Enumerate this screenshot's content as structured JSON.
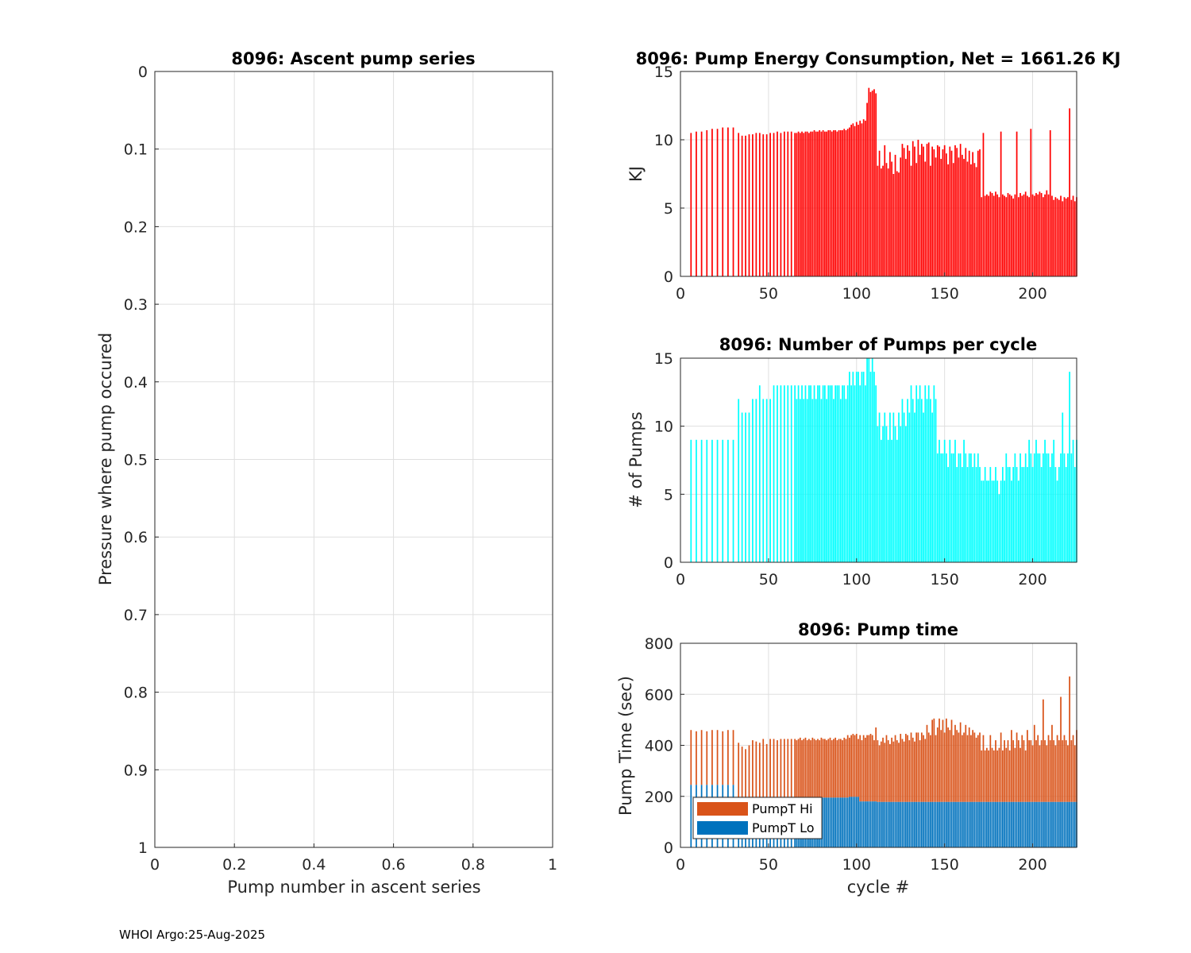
{
  "footer": "WHOI Argo:25-Aug-2025",
  "colors": {
    "energy": "#ff0000",
    "pumps": "#00ffff",
    "hi": "#d95319",
    "lo": "#0072bd",
    "grid": "#dfdfdf",
    "axis": "#262626"
  },
  "chart_data": [
    {
      "id": "ascent",
      "type": "scatter",
      "title": "8096: Ascent pump series",
      "xlabel": "Pump number in ascent series",
      "ylabel": "Pressure where pump occured",
      "xlim": [
        0,
        1
      ],
      "ylim": [
        0,
        1
      ],
      "yreverse": true,
      "xticks": [
        "0",
        "0.2",
        "0.4",
        "0.6",
        "0.8",
        "1"
      ],
      "yticks": [
        "0",
        "0.1",
        "0.2",
        "0.3",
        "0.4",
        "0.5",
        "0.6",
        "0.7",
        "0.8",
        "0.9",
        "1"
      ],
      "grid": true,
      "points": []
    },
    {
      "id": "energy",
      "type": "bar",
      "title": "8096: Pump Energy Consumption,  Net = 1661.26 KJ",
      "xlabel": "",
      "ylabel": "KJ",
      "xlim": [
        0,
        225
      ],
      "ylim": [
        0,
        15
      ],
      "xticks": [
        "0",
        "50",
        "100",
        "150",
        "200"
      ],
      "yticks": [
        "0",
        "5",
        "10",
        "15"
      ],
      "grid": true,
      "segments": [
        {
          "from": 6,
          "to": 30,
          "step": 3,
          "values": [
            10.5,
            10.6,
            10.6,
            10.7,
            10.8,
            10.8,
            10.9,
            10.9,
            10.9
          ]
        },
        {
          "from": 33,
          "to": 64,
          "step": 2,
          "values": [
            10.5,
            10.3,
            10.3,
            10.4,
            10.4,
            10.5,
            10.5,
            10.4,
            10.4,
            10.5,
            10.5,
            10.6,
            10.5,
            10.6,
            10.6,
            10.6
          ]
        },
        {
          "from": 65,
          "to": 95,
          "step": 1,
          "values": [
            10.5,
            10.5,
            10.6,
            10.5,
            10.6,
            10.5,
            10.6,
            10.6,
            10.5,
            10.6,
            10.6,
            10.7,
            10.6,
            10.6,
            10.7,
            10.6,
            10.7,
            10.6,
            10.6,
            10.7,
            10.7,
            10.6,
            10.7,
            10.7,
            10.6,
            10.7,
            10.7,
            10.7,
            10.8,
            10.7,
            10.8
          ]
        },
        {
          "from": 96,
          "to": 111,
          "step": 1,
          "values": [
            10.9,
            11.1,
            11.2,
            11.0,
            11.3,
            11.1,
            11.4,
            11.2,
            11.5,
            11.4,
            12.7,
            13.8,
            13.5,
            13.6,
            13.7,
            13.4
          ]
        },
        {
          "from": 112,
          "to": 170,
          "step": 1,
          "values": [
            8.1,
            9.2,
            7.9,
            8.1,
            9.6,
            8.3,
            7.9,
            9.1,
            8.4,
            7.5,
            8.9,
            7.7,
            7.6,
            8.7,
            9.7,
            9.4,
            8.6,
            9.6,
            9.2,
            8.1,
            9.9,
            9.5,
            8.3,
            10.0,
            8.9,
            9.7,
            9.5,
            8.4,
            9.7,
            9.8,
            8.1,
            9.5,
            9.3,
            8.7,
            9.6,
            9.5,
            8.6,
            9.3,
            9.6,
            9.0,
            8.2,
            9.5,
            9.2,
            8.3,
            9.6,
            9.4,
            8.7,
            9.7,
            8.9,
            8.6,
            9.4,
            8.4,
            9.2,
            8.2,
            9.1,
            8.3,
            8.0,
            9.2,
            9.3
          ]
        },
        {
          "from": 171,
          "to": 225,
          "step": 1,
          "values": [
            5.8,
            10.5,
            5.9,
            6.0,
            5.9,
            6.2,
            6.1,
            5.9,
            6.2,
            6.0,
            5.8,
            10.6,
            6.0,
            5.9,
            5.8,
            6.1,
            6.0,
            5.9,
            5.7,
            6.0,
            10.6,
            5.8,
            6.1,
            5.9,
            6.0,
            6.2,
            5.9,
            5.8,
            10.8,
            6.0,
            5.9,
            6.1,
            6.0,
            6.2,
            6.1,
            5.8,
            6.0,
            6.3,
            6.0,
            10.7,
            5.9,
            5.6,
            5.8,
            5.7,
            5.6,
            5.9,
            5.5,
            5.8,
            5.7,
            5.8,
            12.3,
            5.6,
            5.9,
            5.5,
            5.8
          ]
        }
      ]
    },
    {
      "id": "pumps",
      "type": "bar",
      "title": "8096: Number of Pumps per cycle",
      "xlabel": "",
      "ylabel": "# of Pumps",
      "xlim": [
        0,
        225
      ],
      "ylim": [
        0,
        15
      ],
      "xticks": [
        "0",
        "50",
        "100",
        "150",
        "200"
      ],
      "yticks": [
        "0",
        "5",
        "10",
        "15"
      ],
      "grid": true,
      "segments": [
        {
          "from": 6,
          "to": 30,
          "step": 3,
          "values": [
            9,
            9,
            9,
            9,
            9,
            9,
            9,
            9,
            9
          ]
        },
        {
          "from": 33,
          "to": 64,
          "step": 2,
          "values": [
            12,
            11,
            11,
            11,
            12,
            12,
            13,
            12,
            12,
            12,
            13,
            13,
            13,
            13,
            13,
            13
          ]
        },
        {
          "from": 65,
          "to": 95,
          "step": 1,
          "values": [
            13,
            12,
            13,
            12,
            13,
            12,
            13,
            12,
            13,
            13,
            12,
            13,
            12,
            13,
            13,
            12,
            13,
            13,
            12,
            13,
            13,
            13,
            12,
            13,
            13,
            13,
            12,
            13,
            13,
            12,
            13
          ]
        },
        {
          "from": 96,
          "to": 111,
          "step": 1,
          "values": [
            14,
            13,
            14,
            13,
            14,
            14,
            13,
            14,
            14,
            13,
            15,
            15,
            14,
            15,
            14,
            13
          ]
        },
        {
          "from": 112,
          "to": 170,
          "step": 1,
          "values": [
            10,
            11,
            9,
            10,
            11,
            10,
            9,
            11,
            9,
            11,
            10,
            9,
            11,
            10,
            12,
            11,
            10,
            12,
            11,
            13,
            12,
            11,
            13,
            12,
            13,
            12,
            11,
            13,
            12,
            13,
            12,
            11,
            13,
            12,
            8,
            9,
            8,
            8,
            9,
            8,
            7,
            9,
            8,
            8,
            9,
            7,
            8,
            8,
            7,
            9,
            8,
            7,
            8,
            8,
            7,
            8,
            7,
            8,
            7
          ]
        },
        {
          "from": 171,
          "to": 225,
          "step": 1,
          "values": [
            6,
            6,
            7,
            6,
            6,
            7,
            6,
            6,
            7,
            6,
            5,
            6,
            7,
            6,
            8,
            7,
            7,
            6,
            7,
            8,
            7,
            6,
            8,
            7,
            7,
            8,
            7,
            9,
            8,
            7,
            8,
            9,
            8,
            8,
            7,
            8,
            9,
            8,
            8,
            7,
            8,
            9,
            7,
            6,
            7,
            8,
            11,
            8,
            7,
            8,
            14,
            8,
            9,
            7,
            9
          ]
        }
      ]
    },
    {
      "id": "time",
      "type": "stacked-bar",
      "title": "8096: Pump time",
      "xlabel": "cycle #",
      "ylabel": "Pump Time (sec)",
      "xlim": [
        0,
        225
      ],
      "ylim": [
        0,
        800
      ],
      "xticks": [
        "0",
        "50",
        "100",
        "150",
        "200"
      ],
      "yticks": [
        "0",
        "200",
        "400",
        "600",
        "800"
      ],
      "grid": true,
      "legend": {
        "position": "bottom-left",
        "entries": [
          "PumpT Hi",
          "PumpT Lo"
        ]
      },
      "series": [
        {
          "name": "PumpT Lo",
          "segments": [
            {
              "from": 6,
              "to": 30,
              "step": 3,
              "values": [
                245,
                245,
                245,
                245,
                245,
                245,
                245,
                245,
                245
              ]
            },
            {
              "from": 33,
              "to": 64,
              "step": 2,
              "values": [
                190,
                190,
                190,
                190,
                190,
                190,
                190,
                190,
                190,
                190,
                190,
                190,
                190,
                190,
                190,
                190
              ]
            },
            {
              "from": 65,
              "to": 95,
              "step": 1,
              "values": [
                195,
                195,
                195,
                195,
                195,
                195,
                195,
                195,
                195,
                195,
                195,
                195,
                195,
                195,
                195,
                195,
                195,
                195,
                195,
                195,
                195,
                195,
                195,
                195,
                195,
                195,
                195,
                195,
                195,
                195,
                195
              ]
            },
            {
              "from": 96,
              "to": 111,
              "step": 1,
              "values": [
                198,
                198,
                198,
                198,
                198,
                198,
                180,
                180,
                180,
                180,
                180,
                180,
                180,
                180,
                180,
                180
              ]
            },
            {
              "from": 112,
              "to": 170,
              "step": 1,
              "values": [
                178,
                178,
                178,
                178,
                178,
                178,
                178,
                178,
                178,
                178,
                178,
                178,
                178,
                178,
                178,
                178,
                178,
                178,
                178,
                178,
                178,
                178,
                178,
                178,
                178,
                178,
                178,
                178,
                178,
                178,
                178,
                178,
                178,
                178,
                178,
                178,
                178,
                178,
                178,
                178,
                178,
                178,
                178,
                178,
                178,
                178,
                178,
                178,
                178,
                178,
                178,
                178,
                178,
                178,
                178,
                178,
                178,
                178,
                178
              ]
            },
            {
              "from": 171,
              "to": 225,
              "step": 1,
              "values": [
                178,
                178,
                178,
                178,
                178,
                178,
                178,
                178,
                178,
                178,
                178,
                178,
                178,
                178,
                178,
                178,
                178,
                178,
                178,
                178,
                178,
                178,
                178,
                178,
                178,
                178,
                178,
                178,
                178,
                178,
                178,
                178,
                178,
                178,
                178,
                178,
                178,
                178,
                178,
                178,
                178,
                178,
                178,
                178,
                178,
                178,
                178,
                178,
                178,
                178,
                178,
                178,
                178,
                178,
                178
              ]
            }
          ]
        },
        {
          "name": "PumpT Hi",
          "segments": [
            {
              "from": 6,
              "to": 30,
              "step": 3,
              "values": [
                460,
                455,
                460,
                455,
                460,
                460,
                455,
                460,
                460
              ]
            },
            {
              "from": 33,
              "to": 64,
              "step": 2,
              "values": [
                410,
                395,
                385,
                400,
                420,
                415,
                410,
                425,
                405,
                425,
                425,
                420,
                425,
                425,
                425,
                425
              ]
            },
            {
              "from": 65,
              "to": 95,
              "step": 1,
              "values": [
                425,
                420,
                425,
                430,
                420,
                425,
                430,
                420,
                425,
                420,
                430,
                425,
                420,
                425,
                420,
                430,
                425,
                425,
                420,
                425,
                430,
                420,
                425,
                430,
                420,
                425,
                425,
                420,
                430,
                425,
                440
              ]
            },
            {
              "from": 96,
              "to": 111,
              "step": 1,
              "values": [
                430,
                440,
                445,
                440,
                445,
                425,
                440,
                420,
                440,
                430,
                440,
                440,
                445,
                440,
                420,
                470
              ]
            },
            {
              "from": 112,
              "to": 170,
              "step": 1,
              "values": [
                420,
                400,
                415,
                430,
                410,
                440,
                420,
                405,
                430,
                415,
                440,
                420,
                410,
                445,
                425,
                415,
                445,
                440,
                420,
                450,
                430,
                415,
                450,
                450,
                420,
                450,
                440,
                425,
                480,
                450,
                440,
                500,
                505,
                440,
                470,
                505,
                460,
                500,
                450,
                505,
                470,
                460,
                500,
                440,
                480,
                460,
                450,
                490,
                440,
                450,
                480,
                440,
                470,
                440,
                460,
                450,
                430,
                440,
                450
              ]
            },
            {
              "from": 171,
              "to": 225,
              "step": 1,
              "values": [
                380,
                440,
                380,
                390,
                380,
                440,
                390,
                380,
                420,
                380,
                390,
                450,
                380,
                420,
                390,
                420,
                380,
                460,
                420,
                390,
                450,
                420,
                390,
                440,
                420,
                380,
                460,
                420,
                420,
                400,
                480,
                420,
                440,
                400,
                420,
                580,
                420,
                400,
                440,
                420,
                480,
                420,
                400,
                440,
                420,
                590,
                420,
                440,
                420,
                400,
                670,
                420,
                440,
                400,
                460
              ]
            }
          ]
        }
      ]
    }
  ]
}
